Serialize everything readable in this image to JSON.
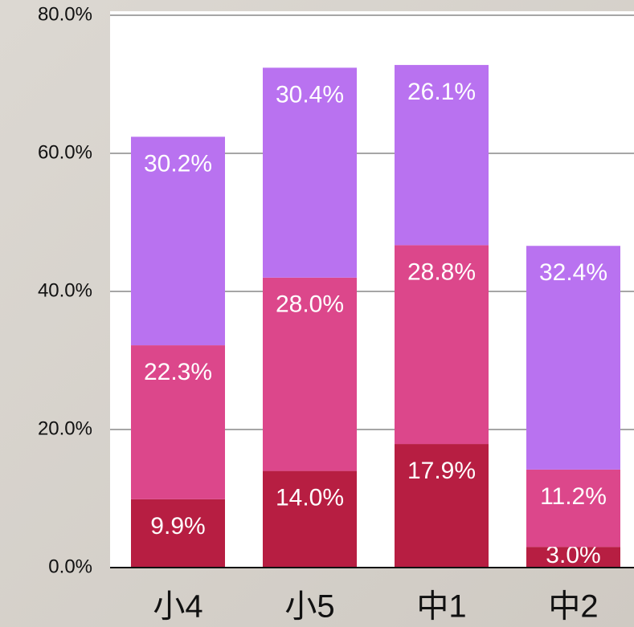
{
  "chart_data": {
    "type": "stacked_bar",
    "categories": [
      "小4",
      "小5",
      "中1",
      "中2"
    ],
    "series": [
      {
        "color": "#b71e42",
        "values": [
          9.9,
          14.0,
          17.9,
          3.0
        ],
        "value_labels": [
          "9.9%",
          "14.0%",
          "17.9%",
          "3.0%"
        ]
      },
      {
        "color": "#dc478b",
        "values": [
          22.3,
          28.0,
          28.8,
          11.2
        ],
        "value_labels": [
          "22.3%",
          "28.0%",
          "28.8%",
          "11.2%"
        ]
      },
      {
        "color": "#b972f0",
        "values": [
          30.2,
          30.4,
          26.1,
          32.4
        ],
        "value_labels": [
          "30.2%",
          "30.4%",
          "26.1%",
          "32.4%"
        ]
      }
    ],
    "ylim": [
      0,
      80
    ],
    "yticks": [
      {
        "value": 0,
        "label": "0.0%"
      },
      {
        "value": 20,
        "label": "20.0%"
      },
      {
        "value": 40,
        "label": "40.0%"
      },
      {
        "value": 60,
        "label": "60.0%"
      },
      {
        "value": 80,
        "label": "80.0%"
      }
    ],
    "grid": true
  }
}
